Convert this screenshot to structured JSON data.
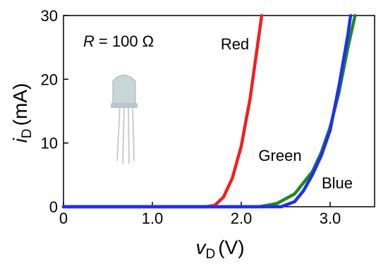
{
  "chart_data": {
    "type": "line",
    "annotation": {
      "symbol": "R",
      "text": "= 100 Ω"
    },
    "xlabel": {
      "symbol": "v",
      "subscript": "D",
      "unit": "(V)"
    },
    "ylabel": {
      "symbol": "i",
      "subscript": "D",
      "unit": "(mA)"
    },
    "xlim": [
      0,
      3.5
    ],
    "ylim": [
      0,
      30
    ],
    "xticks": [
      0,
      {
        "value": 1,
        "label": "1.0"
      },
      {
        "value": 2,
        "label": "2.0"
      },
      {
        "value": 3,
        "label": "3.0"
      }
    ],
    "yticks": [
      0,
      10,
      20,
      30
    ],
    "series": [
      {
        "name": "Red",
        "color": "#f02020",
        "x": [
          0,
          1.6,
          1.7,
          1.8,
          1.9,
          2.0,
          2.1,
          2.2,
          2.23
        ],
        "values": [
          0,
          0,
          0.2,
          1.5,
          4.5,
          9.5,
          17,
          27,
          30
        ]
      },
      {
        "name": "Green",
        "color": "#1e8a1e",
        "x": [
          0,
          2.2,
          2.4,
          2.6,
          2.8,
          2.9,
          3.0,
          3.1,
          3.2,
          3.28
        ],
        "values": [
          0,
          0,
          0.5,
          2,
          5.5,
          8.5,
          12.5,
          18,
          25,
          30
        ]
      },
      {
        "name": "Blue",
        "color": "#1f2ff0",
        "x": [
          0,
          2.45,
          2.6,
          2.7,
          2.8,
          2.9,
          3.0,
          3.1,
          3.2,
          3.23
        ],
        "values": [
          0,
          0,
          0.8,
          2.5,
          5,
          8,
          12,
          19,
          27,
          30
        ]
      }
    ]
  }
}
